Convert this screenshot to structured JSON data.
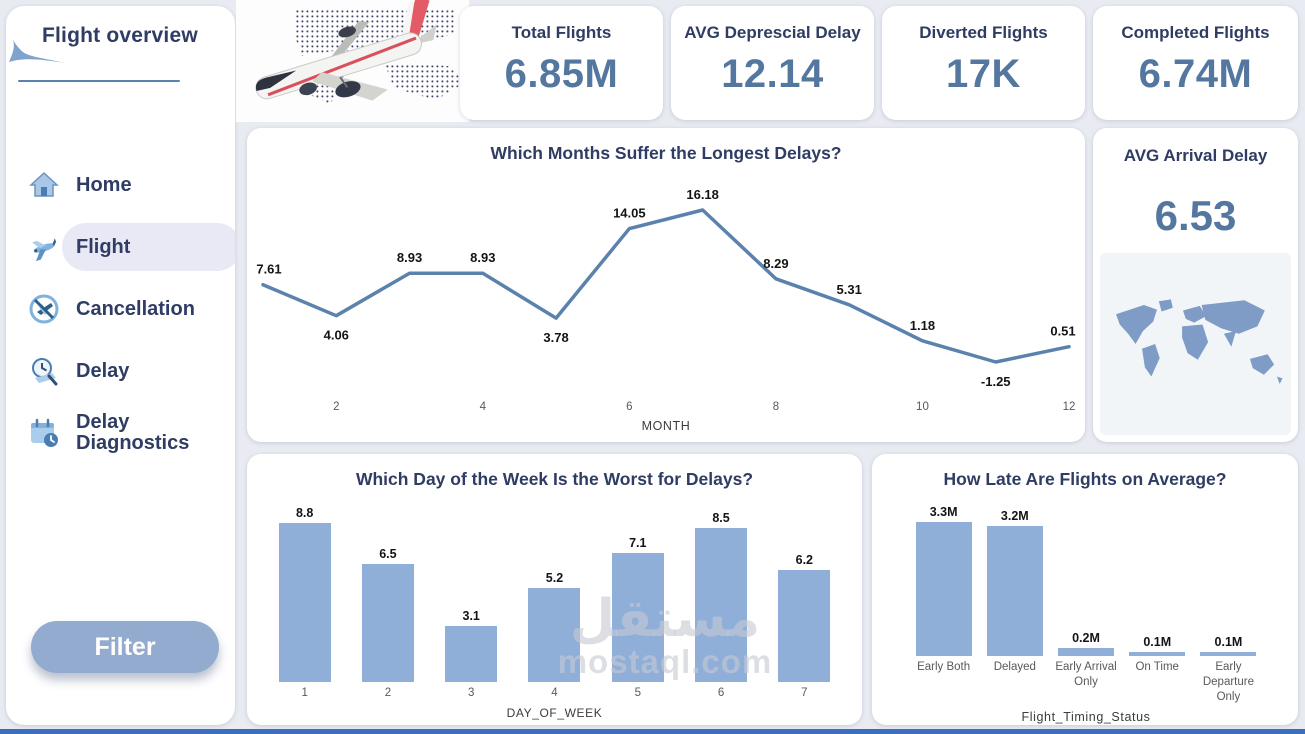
{
  "sidebar": {
    "title": "Flight overview",
    "items": [
      {
        "label": "Home"
      },
      {
        "label": "Flight",
        "active": true
      },
      {
        "label": "Cancellation"
      },
      {
        "label": "Delay"
      },
      {
        "label": "Delay Diagnostics"
      }
    ],
    "filter_label": "Filter"
  },
  "kpis": [
    {
      "label": "Total Flights",
      "value": "6.85M"
    },
    {
      "label": "AVG Deprescial Delay",
      "value": "12.14"
    },
    {
      "label": "Diverted Flights",
      "value": "17K"
    },
    {
      "label": "Completed Flights",
      "value": "6.74M"
    }
  ],
  "arrival_delay_card": {
    "label": "AVG Arrival Delay",
    "value": "6.53"
  },
  "watermark": {
    "arabic": "مستقل",
    "latin": "mostaql.com"
  },
  "colors": {
    "navy_text": "#2f3c63",
    "value_blue": "#54779f",
    "line_blue": "#5b82ac",
    "bar_blue": "#8fafd9",
    "nav_active_pill": "#e9e8f5",
    "filter_button": "#93abce",
    "bottom_strip": "#3f6dbe",
    "map_silhouette": "#7e9cc6"
  },
  "chart_data": [
    {
      "id": "monthly_delays",
      "type": "line",
      "title": "Which Months Suffer the Longest Delays?",
      "x": [
        1,
        2,
        3,
        4,
        5,
        6,
        7,
        8,
        9,
        10,
        11,
        12
      ],
      "values": [
        7.61,
        4.06,
        8.93,
        8.93,
        3.78,
        14.05,
        16.18,
        8.29,
        5.31,
        1.18,
        -1.25,
        0.51
      ],
      "labels": [
        "7.61",
        "4.06",
        "8.93",
        "8.93",
        "3.78",
        "14.05",
        "16.18",
        "8.29",
        "5.31",
        "1.18",
        "-1.25",
        "0.51"
      ],
      "x_ticks": [
        2,
        4,
        6,
        8,
        10,
        12
      ],
      "x_tick_labels": [
        "2",
        "4",
        "6",
        "8",
        "10",
        "12"
      ],
      "xlabel": "MONTH",
      "ylim": [
        -2.5,
        17.5
      ],
      "grid": false,
      "legend": "none",
      "line_color": "#5b82ac"
    },
    {
      "id": "weekday_delays",
      "type": "bar",
      "title": "Which Day of the Week Is the Worst for Delays?",
      "categories": [
        "1",
        "2",
        "3",
        "4",
        "5",
        "6",
        "7"
      ],
      "values": [
        8.8,
        6.5,
        3.1,
        5.2,
        7.1,
        8.5,
        6.2
      ],
      "labels": [
        "8.8",
        "6.5",
        "3.1",
        "5.2",
        "7.1",
        "8.5",
        "6.2"
      ],
      "xlabel": "DAY_OF_WEEK",
      "ylim": [
        0,
        9.5
      ],
      "grid": false,
      "legend": "none",
      "bar_color": "#8fafd9"
    },
    {
      "id": "flight_timing_status",
      "type": "bar",
      "title": "How Late Are Flights on Average?",
      "categories": [
        "Early Both",
        "Delayed",
        "Early Arrival Only",
        "On Time",
        "Early Departure Only"
      ],
      "values": [
        3.3,
        3.2,
        0.2,
        0.1,
        0.1
      ],
      "labels": [
        "3.3M",
        "3.2M",
        "0.2M",
        "0.1M",
        "0.1M"
      ],
      "xlabel": "Flight_Timing_Status",
      "ylim": [
        0,
        3.7
      ],
      "grid": false,
      "legend": "none",
      "bar_color": "#8fafd9"
    }
  ]
}
